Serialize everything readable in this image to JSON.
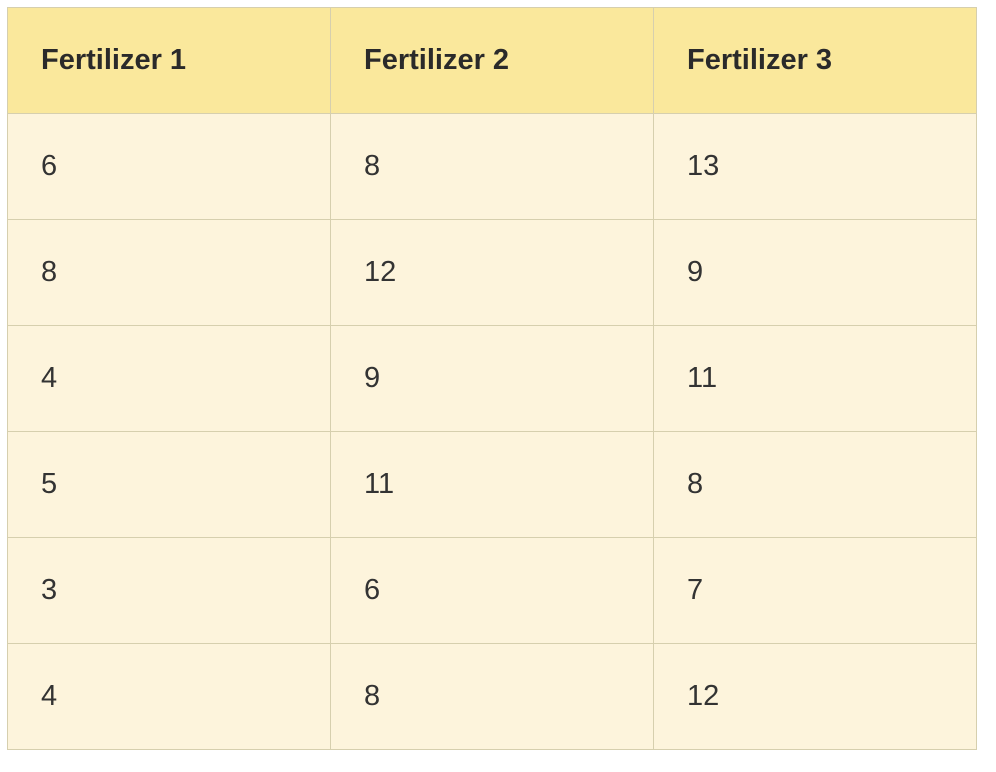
{
  "table": {
    "headers": [
      "Fertilizer 1",
      "Fertilizer 2",
      "Fertilizer 3"
    ],
    "rows": [
      [
        "6",
        "8",
        "13"
      ],
      [
        "8",
        "12",
        "9"
      ],
      [
        "4",
        "9",
        "11"
      ],
      [
        "5",
        "11",
        "8"
      ],
      [
        "3",
        "6",
        "7"
      ],
      [
        "4",
        "8",
        "12"
      ]
    ]
  },
  "colors": {
    "header_bg": "#fae89c",
    "body_bg": "#fdf4dc",
    "border": "#d6cfae",
    "text": "#2a2a2a"
  }
}
